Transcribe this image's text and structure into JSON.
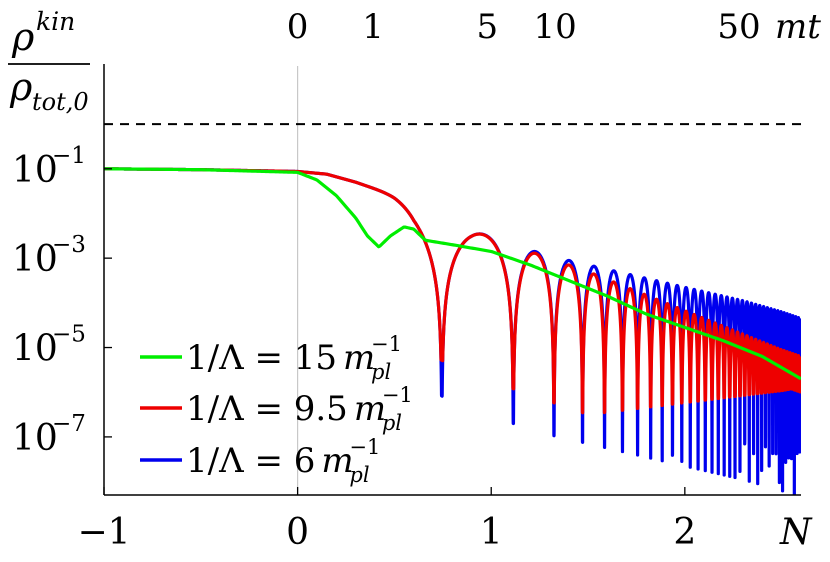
{
  "chart_data": {
    "type": "line",
    "title": "",
    "xlabel": "N",
    "ylabel": {
      "numerator": "ρ",
      "numerator_sup": "kin",
      "denominator": "ρ",
      "denominator_sub": "tot,0"
    },
    "x_ticks": [
      "−1",
      "0",
      "1",
      "2"
    ],
    "x_tick_values": [
      -1,
      0,
      1,
      2
    ],
    "xlim": [
      -1,
      2.6
    ],
    "y_scale": "log",
    "ylim_log10": [
      -8.3,
      1.3
    ],
    "y_ticks": [
      {
        "base": "10",
        "exp": "−1",
        "log10": -1
      },
      {
        "base": "10",
        "exp": "−3",
        "log10": -3
      },
      {
        "base": "10",
        "exp": "−5",
        "log10": -5
      },
      {
        "base": "10",
        "exp": "−7",
        "log10": -7
      }
    ],
    "top_axis": {
      "label": "mt",
      "ticks": [
        {
          "label": "0",
          "N": 0.0
        },
        {
          "label": "1",
          "N": 0.39
        },
        {
          "label": "5",
          "N": 0.98
        },
        {
          "label": "10",
          "N": 1.33
        },
        {
          "label": "50",
          "N": 2.28
        }
      ]
    },
    "reference_lines": [
      {
        "style": "dashed",
        "color": "#000000",
        "y": 1
      },
      {
        "style": "solid",
        "color": "#c8c8c8",
        "x": 0
      }
    ],
    "legend": {
      "placement": "bottom-left",
      "unit_base": "m",
      "unit_sub": "pl",
      "unit_sup": "−1",
      "entries": [
        {
          "prefix": "1/Λ = ",
          "value": "15",
          "color": "#00ee00"
        },
        {
          "prefix": "1/Λ = ",
          "value": "9.5",
          "color": "#ee0000"
        },
        {
          "prefix": "1/Λ = ",
          "value": "6",
          "color": "#0000ee"
        }
      ]
    },
    "series": [
      {
        "color": "#00ee00",
        "key_points": {
          "x": [
            -1,
            -0.5,
            0,
            0.1,
            0.2,
            0.3,
            0.36,
            0.42,
            0.48,
            0.55,
            0.6,
            0.66,
            0.8,
            1.0,
            1.2,
            1.4,
            1.6,
            1.8,
            2.0,
            2.2,
            2.4,
            2.6
          ],
          "log10y": [
            -1.0,
            -1.02,
            -1.08,
            -1.25,
            -1.6,
            -2.1,
            -2.5,
            -2.75,
            -2.5,
            -2.3,
            -2.35,
            -2.6,
            -2.7,
            -2.85,
            -3.15,
            -3.5,
            -3.85,
            -4.25,
            -4.55,
            -4.85,
            -5.2,
            -5.7
          ]
        }
      },
      {
        "color": "#ee0000",
        "envelope": {
          "x": [
            -1,
            -0.5,
            0,
            0.15,
            0.3,
            0.5,
            0.7,
            0.9,
            1.1,
            1.3,
            1.5,
            1.7,
            1.9,
            2.1,
            2.3,
            2.5,
            2.6
          ],
          "log10y": [
            -1.0,
            -1.02,
            -1.06,
            -1.12,
            -1.3,
            -1.6,
            -2.0,
            -2.38,
            -2.7,
            -3.0,
            -3.3,
            -3.65,
            -4.0,
            -4.35,
            -4.7,
            -5.05,
            -5.2
          ]
        },
        "oscillation": {
          "start_N": 0.35,
          "first_minimum_N": 0.745,
          "decay_start_N": 1.5,
          "min_depth_decades": 3.2
        }
      },
      {
        "color": "#0000ee",
        "envelope": {
          "x": [
            -1,
            -0.5,
            0,
            0.15,
            0.3,
            0.5,
            0.7,
            0.9,
            1.1,
            1.3,
            1.5,
            1.7,
            1.9,
            2.1,
            2.3,
            2.5,
            2.6
          ],
          "log10y": [
            -1.0,
            -1.02,
            -1.06,
            -1.12,
            -1.3,
            -1.6,
            -2.0,
            -2.38,
            -2.68,
            -2.95,
            -3.15,
            -3.35,
            -3.55,
            -3.75,
            -3.95,
            -4.2,
            -4.35
          ]
        },
        "oscillation": {
          "start_N": 0.35,
          "first_minimum_N": 0.745,
          "min_depth_decades": 4.0
        }
      }
    ]
  }
}
